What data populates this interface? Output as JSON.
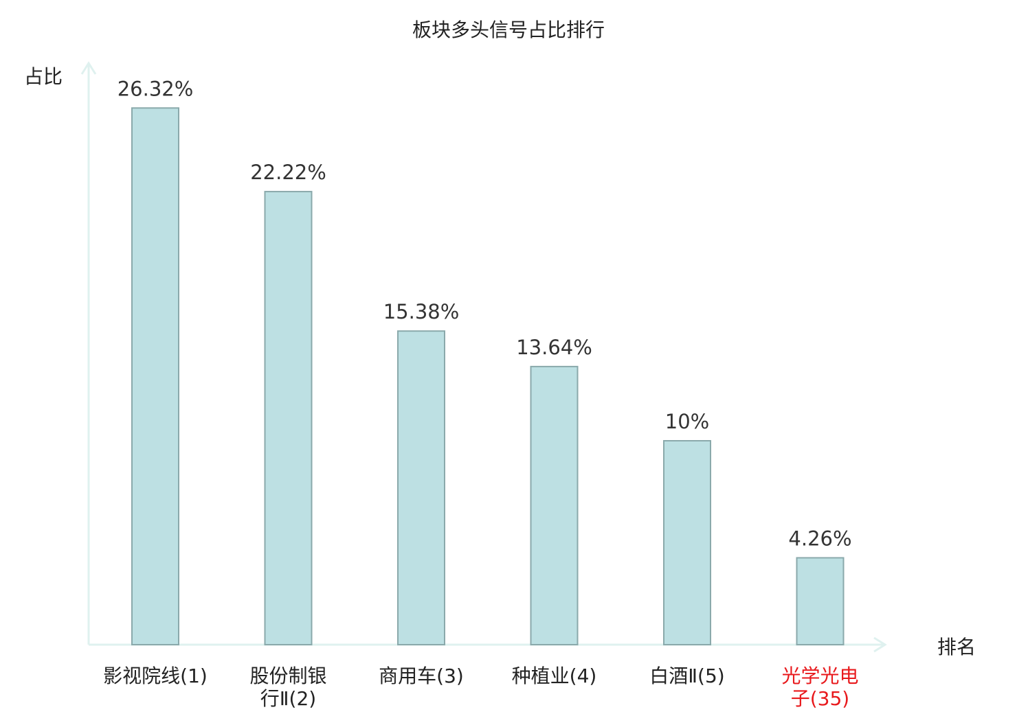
{
  "chart_data": {
    "type": "bar",
    "title": "板块多头信号占比排行",
    "ylabel": "占比",
    "xlabel": "排名",
    "ylim": [
      0,
      30
    ],
    "grid": false,
    "legend": "none",
    "categories": [
      {
        "name": "影视院线",
        "rank": "(1)",
        "lines": [
          "影视院线(1)"
        ],
        "value": 26.32,
        "label": "26.32%",
        "highlight": false
      },
      {
        "name": "股份制银行Ⅱ",
        "rank": "(2)",
        "lines": [
          "股份制银",
          "行Ⅱ(2)"
        ],
        "value": 22.22,
        "label": "22.22%",
        "highlight": false
      },
      {
        "name": "商用车",
        "rank": "(3)",
        "lines": [
          "商用车(3)"
        ],
        "value": 15.38,
        "label": "15.38%",
        "highlight": false
      },
      {
        "name": "种植业",
        "rank": "(4)",
        "lines": [
          "种植业(4)"
        ],
        "value": 13.64,
        "label": "13.64%",
        "highlight": false
      },
      {
        "name": "白酒Ⅱ",
        "rank": "(5)",
        "lines": [
          "白酒Ⅱ(5)"
        ],
        "value": 10,
        "label": "10%",
        "highlight": false
      },
      {
        "name": "光学光电子",
        "rank": "(35)",
        "lines": [
          "光学光电",
          "子(35)"
        ],
        "value": 4.26,
        "label": "4.26%",
        "highlight": true
      }
    ],
    "colors": {
      "bar_fill": "#bde0e3",
      "bar_stroke": "#8aa9ab",
      "axis": "#dff1ef",
      "highlight_text": "#e8191c",
      "text": "#222222",
      "value_text": "#333333"
    }
  }
}
